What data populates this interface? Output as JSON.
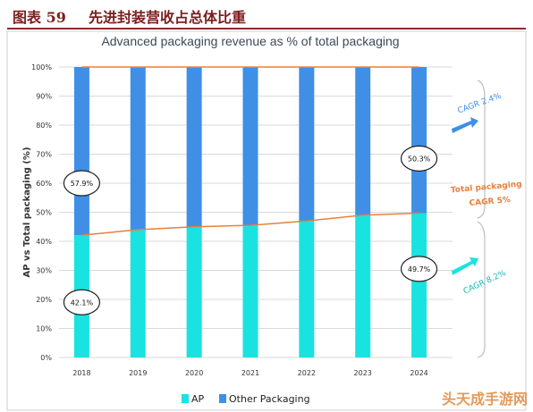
{
  "figure": {
    "label": "图表 59",
    "caption": "先进封装营收占总体比重"
  },
  "chart_data": {
    "type": "bar",
    "stacked": true,
    "title": "Advanced packaging revenue as % of total packaging",
    "ylabel": "AP vs Total packaging (%)",
    "xlabel": "",
    "ylim": [
      0,
      100
    ],
    "yticks": [
      "0%",
      "10%",
      "20%",
      "30%",
      "40%",
      "50%",
      "60%",
      "70%",
      "80%",
      "90%",
      "100%"
    ],
    "categories": [
      "2018",
      "2019",
      "2020",
      "2021",
      "2022",
      "2023",
      "2024"
    ],
    "series": [
      {
        "name": "AP",
        "color": "#19e3e0",
        "values": [
          42.1,
          44,
          45,
          45.5,
          47,
          49,
          49.7
        ]
      },
      {
        "name": "Other Packaging",
        "color": "#3f8fe6",
        "values": [
          57.9,
          56,
          55,
          54.5,
          53,
          51,
          50.3
        ]
      }
    ],
    "lines": [
      {
        "name": "AP share line",
        "color": "#e8803a",
        "values": [
          42.1,
          44,
          45,
          45.5,
          47,
          49,
          49.7
        ]
      },
      {
        "name": "Total line",
        "color": "#e8803a",
        "values": [
          100,
          100,
          100,
          100,
          100,
          100,
          100
        ]
      }
    ],
    "legend_position": "bottom",
    "grid": true,
    "annotations": {
      "label_2018_other": "57.9%",
      "label_2018_ap": "42.1%",
      "label_2024_other": "50.3%",
      "label_2024_ap": "49.7%",
      "cagr_other": "CAGR 2.4%",
      "cagr_total_line1": "Total packaging",
      "cagr_total_line2": "CAGR 5%",
      "cagr_ap": "CAGR 8.2%"
    }
  },
  "watermark": "头天成手游网"
}
